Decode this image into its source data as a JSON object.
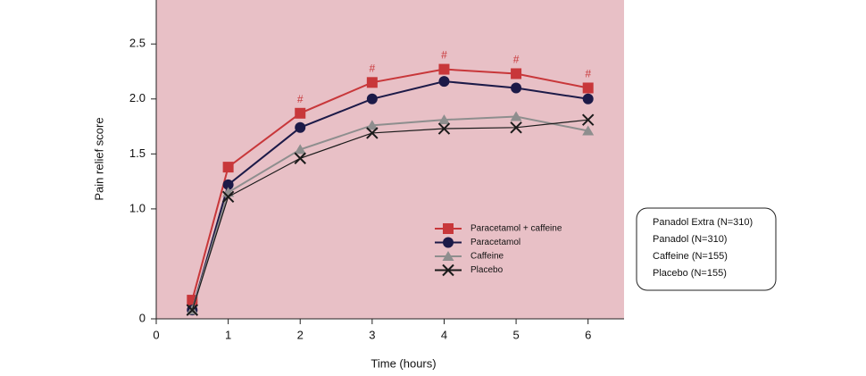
{
  "chart_data": {
    "type": "line",
    "x_label": "Time (hours)",
    "y_label": "Pain relief score",
    "x": [
      0.5,
      1,
      2,
      3,
      4,
      5,
      6
    ],
    "xlim": [
      0,
      6.5
    ],
    "xticks": [
      0,
      1,
      2,
      3,
      4,
      5,
      6
    ],
    "ylim": [
      0,
      2.9
    ],
    "yticks": [
      0,
      {
        "value": 1,
        "label": "1.0"
      },
      {
        "value": 1.5,
        "label": "1.5"
      },
      {
        "value": 2,
        "label": "2.0"
      },
      {
        "value": 2.5,
        "label": "2.5"
      }
    ],
    "background": "#e8c0c6",
    "legend_position": "lower right",
    "series": [
      {
        "name": "Paracetamol + caffeine",
        "color": "#c8373a",
        "marker": "square",
        "values": [
          0.17,
          1.38,
          1.87,
          2.15,
          2.27,
          2.23,
          2.1
        ]
      },
      {
        "name": "Paracetamol",
        "color": "#1c1a48",
        "marker": "circle",
        "values": [
          0.08,
          1.22,
          1.74,
          2.0,
          2.16,
          2.1,
          2.0
        ]
      },
      {
        "name": "Caffeine",
        "color": "#8e8e8e",
        "marker": "triangle",
        "values": [
          0.08,
          1.15,
          1.54,
          1.76,
          1.81,
          1.84,
          1.71
        ]
      },
      {
        "name": "Placebo",
        "color": "#1a1a1a",
        "marker": "cross",
        "values": [
          0.08,
          1.11,
          1.46,
          1.69,
          1.73,
          1.74,
          1.81
        ]
      }
    ],
    "annotations": [
      {
        "x": 2,
        "text": "#"
      },
      {
        "x": 3,
        "text": "#"
      },
      {
        "x": 4,
        "text": "#"
      },
      {
        "x": 5,
        "text": "#"
      },
      {
        "x": 6,
        "text": "#"
      }
    ],
    "side_note": [
      "Panadol Extra (N=310)",
      "Panadol (N=310)",
      "Caffeine (N=155)",
      "Placebo (N=155)"
    ]
  }
}
